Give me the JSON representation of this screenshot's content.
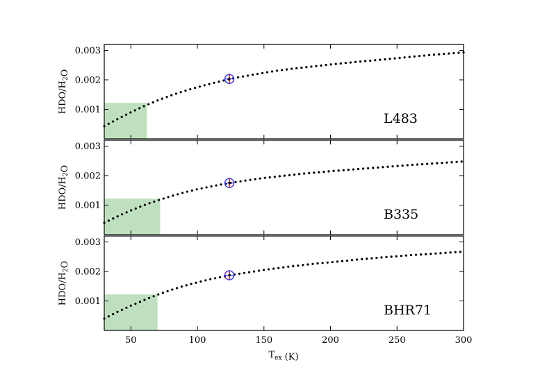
{
  "chart_data": [
    {
      "type": "line",
      "panel_label": "L483",
      "ylabel": "HDO/H₂O",
      "xlim": [
        30,
        300
      ],
      "ylim": [
        0,
        0.0032
      ],
      "yticks": [
        "0.001",
        "0.002",
        "0.003"
      ],
      "grid": false,
      "series": [
        {
          "style": "dotted",
          "color": "#000000",
          "x": [
            30,
            40,
            50,
            60,
            70,
            80,
            90,
            100,
            110,
            120,
            124,
            130,
            140,
            150,
            160,
            170,
            180,
            190,
            200,
            220,
            240,
            260,
            280,
            300
          ],
          "y": [
            0.00043,
            0.00067,
            0.0009,
            0.00111,
            0.0013,
            0.00147,
            0.00162,
            0.00175,
            0.00187,
            0.00198,
            0.00203,
            0.00208,
            0.00216,
            0.00224,
            0.00231,
            0.00237,
            0.00242,
            0.00247,
            0.00252,
            0.00261,
            0.00269,
            0.00278,
            0.00286,
            0.00293
          ]
        }
      ],
      "marker": {
        "x": 124,
        "y": 0.00203,
        "symbol": "circled-plus",
        "circle_color": "#3b3bff",
        "plus_color": "#cc0000"
      },
      "shaded_region": {
        "x": [
          30,
          62
        ],
        "y": [
          0,
          0.00122
        ],
        "color": "#bfe0bf"
      }
    },
    {
      "type": "line",
      "panel_label": "B335",
      "ylabel": "HDO/H₂O",
      "xlim": [
        30,
        300
      ],
      "ylim": [
        0,
        0.0032
      ],
      "yticks": [
        "0.001",
        "0.002",
        "0.003"
      ],
      "grid": false,
      "series": [
        {
          "style": "dotted",
          "color": "#000000",
          "x": [
            30,
            40,
            50,
            60,
            70,
            80,
            90,
            100,
            110,
            120,
            124,
            130,
            140,
            150,
            160,
            170,
            180,
            190,
            200,
            220,
            240,
            260,
            280,
            300
          ],
          "y": [
            0.0004,
            0.00062,
            0.00082,
            0.001,
            0.00116,
            0.0013,
            0.00143,
            0.00154,
            0.00163,
            0.00172,
            0.00175,
            0.00179,
            0.00186,
            0.00192,
            0.00197,
            0.00202,
            0.00207,
            0.00211,
            0.00215,
            0.00222,
            0.00229,
            0.00236,
            0.00242,
            0.00248
          ]
        }
      ],
      "marker": {
        "x": 124,
        "y": 0.00175,
        "symbol": "circled-plus",
        "circle_color": "#3b3bff",
        "plus_color": "#cc0000"
      },
      "shaded_region": {
        "x": [
          30,
          72
        ],
        "y": [
          0,
          0.00122
        ],
        "color": "#bfe0bf"
      }
    },
    {
      "type": "line",
      "panel_label": "BHR71",
      "ylabel": "HDO/H₂O",
      "xlabel": "Tₑₓ (K)",
      "xlim": [
        30,
        300
      ],
      "ylim": [
        0,
        0.0032
      ],
      "xticks": [
        "50",
        "100",
        "150",
        "200",
        "250",
        "300"
      ],
      "yticks": [
        "0.001",
        "0.002",
        "0.003"
      ],
      "grid": false,
      "series": [
        {
          "style": "dotted",
          "color": "#000000",
          "x": [
            30,
            40,
            50,
            60,
            70,
            80,
            90,
            100,
            110,
            120,
            124,
            130,
            140,
            150,
            160,
            170,
            180,
            190,
            200,
            220,
            240,
            260,
            280,
            300
          ],
          "y": [
            0.0004,
            0.00063,
            0.00084,
            0.00103,
            0.00121,
            0.00137,
            0.00151,
            0.00163,
            0.00174,
            0.00183,
            0.00187,
            0.00191,
            0.00198,
            0.00205,
            0.00211,
            0.00217,
            0.00222,
            0.00227,
            0.00231,
            0.0024,
            0.00248,
            0.00255,
            0.00261,
            0.00267
          ]
        }
      ],
      "marker": {
        "x": 124,
        "y": 0.00187,
        "symbol": "circled-plus",
        "circle_color": "#3b3bff",
        "plus_color": "#cc0000"
      },
      "shaded_region": {
        "x": [
          30,
          70
        ],
        "y": [
          0,
          0.00122
        ],
        "color": "#bfe0bf"
      }
    }
  ]
}
